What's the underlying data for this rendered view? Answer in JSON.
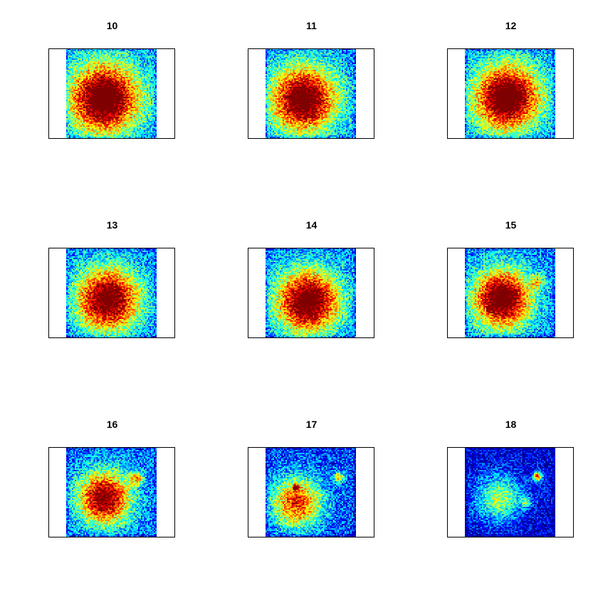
{
  "chart_data": {
    "type": "heatmap",
    "layout": "3x3 grid of small-multiple image plots",
    "colormap": [
      "#00007F",
      "#0000FF",
      "#007FFF",
      "#00FFFF",
      "#7FFF7F",
      "#FFFF00",
      "#FF7F00",
      "#FF0000",
      "#7F0000"
    ],
    "axes": "none",
    "legend": "none",
    "panels": [
      {
        "title": "10",
        "blobs": [
          {
            "cx": 0.42,
            "cy": 0.56,
            "sigma": 0.26,
            "amp": 1.0
          }
        ],
        "noise": 0.18,
        "background": 0.32
      },
      {
        "title": "11",
        "blobs": [
          {
            "cx": 0.42,
            "cy": 0.57,
            "sigma": 0.25,
            "amp": 0.95
          }
        ],
        "noise": 0.18,
        "background": 0.3
      },
      {
        "title": "12",
        "blobs": [
          {
            "cx": 0.47,
            "cy": 0.55,
            "sigma": 0.25,
            "amp": 1.0
          }
        ],
        "noise": 0.18,
        "background": 0.3
      },
      {
        "title": "13",
        "blobs": [
          {
            "cx": 0.46,
            "cy": 0.58,
            "sigma": 0.24,
            "amp": 0.95
          }
        ],
        "noise": 0.18,
        "background": 0.28
      },
      {
        "title": "14",
        "blobs": [
          {
            "cx": 0.47,
            "cy": 0.6,
            "sigma": 0.24,
            "amp": 0.98
          }
        ],
        "noise": 0.18,
        "background": 0.28
      },
      {
        "title": "15",
        "blobs": [
          {
            "cx": 0.41,
            "cy": 0.57,
            "sigma": 0.22,
            "amp": 1.0
          },
          {
            "cx": 0.8,
            "cy": 0.38,
            "sigma": 0.05,
            "amp": 0.35
          }
        ],
        "noise": 0.18,
        "background": 0.28
      },
      {
        "title": "16",
        "blobs": [
          {
            "cx": 0.42,
            "cy": 0.57,
            "sigma": 0.2,
            "amp": 0.92
          },
          {
            "cx": 0.78,
            "cy": 0.35,
            "sigma": 0.05,
            "amp": 0.45
          }
        ],
        "noise": 0.18,
        "background": 0.26
      },
      {
        "title": "17",
        "blobs": [
          {
            "cx": 0.35,
            "cy": 0.62,
            "sigma": 0.2,
            "amp": 0.72
          },
          {
            "cx": 0.81,
            "cy": 0.34,
            "sigma": 0.04,
            "amp": 0.55
          },
          {
            "cx": 0.33,
            "cy": 0.45,
            "sigma": 0.02,
            "amp": 0.9
          }
        ],
        "noise": 0.18,
        "background": 0.2
      },
      {
        "title": "18",
        "blobs": [
          {
            "cx": 0.38,
            "cy": 0.57,
            "sigma": 0.18,
            "amp": 0.5
          },
          {
            "cx": 0.8,
            "cy": 0.33,
            "sigma": 0.035,
            "amp": 0.85
          },
          {
            "cx": 0.68,
            "cy": 0.62,
            "sigma": 0.04,
            "amp": 0.35
          }
        ],
        "noise": 0.16,
        "background": 0.1
      }
    ]
  }
}
